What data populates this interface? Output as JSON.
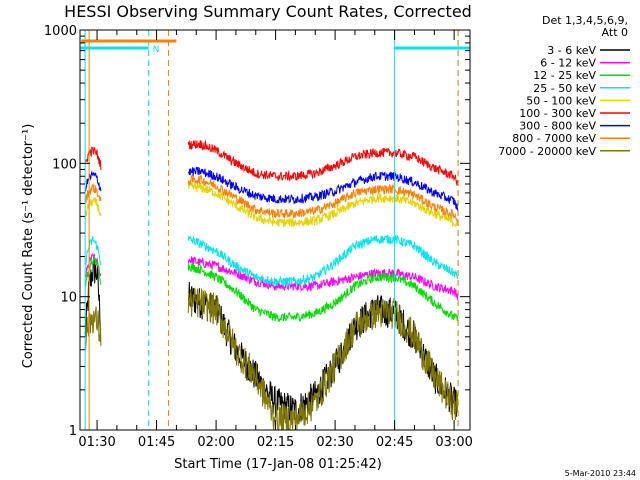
{
  "chart_data": {
    "type": "line",
    "title": "HESSI Observing Summary Count Rates, Corrected",
    "xlabel": "Start Time (17-Jan-08 01:25:42)",
    "ylabel": "Corrected Count Rate (s⁻¹ detector⁻¹)",
    "ylim": [
      1,
      1000
    ],
    "y_scale": "log",
    "y_ticks": [
      1,
      10,
      100,
      1000
    ],
    "y_tick_labels": [
      "1",
      "10",
      "100",
      "1000"
    ],
    "xlim": [
      "01:25:42",
      "03:04:00"
    ],
    "x_ticks": [
      "01:30",
      "01:45",
      "02:00",
      "02:15",
      "02:30",
      "02:45",
      "03:00"
    ],
    "grid": false,
    "legend_position": "right",
    "legend_header": [
      "Det 1,3,4,5,6,9,",
      "Att 0"
    ],
    "timestamp": "5-Mar-2010 23:44",
    "x_times": [
      "01:27",
      "01:28",
      "01:29",
      "01:30",
      "01:31",
      "01:53",
      "01:56",
      "02:00",
      "02:05",
      "02:10",
      "02:15",
      "02:20",
      "02:25",
      "02:30",
      "02:35",
      "02:40",
      "02:45",
      "02:50",
      "02:55",
      "03:00",
      "03:01"
    ],
    "series": [
      {
        "name": "3 - 6 keV",
        "color": "#000000",
        "values": [
          5,
          12,
          16,
          15,
          6,
          10,
          9,
          8,
          4,
          2.5,
          1.6,
          1.4,
          1.8,
          3,
          6,
          8,
          7.5,
          5,
          2.5,
          1.6,
          1.5
        ]
      },
      {
        "name": "6 - 12 keV",
        "color": "#ff00ff",
        "values": [
          14,
          18,
          20,
          18,
          14,
          19,
          18,
          17,
          15,
          13,
          12,
          12,
          12,
          13,
          14,
          15,
          15,
          14,
          12,
          11,
          10
        ]
      },
      {
        "name": "12 - 25 keV",
        "color": "#00dd00",
        "values": [
          12,
          16,
          19,
          18,
          13,
          17,
          16,
          14,
          11,
          8,
          7,
          7,
          7.5,
          9,
          12,
          14,
          14,
          12,
          9,
          7,
          6.8
        ]
      },
      {
        "name": "25 - 50 keV",
        "color": "#00e5ee",
        "values": [
          18,
          24,
          27,
          24,
          18,
          27,
          25,
          22,
          17,
          14,
          13,
          13,
          14,
          18,
          24,
          27,
          27,
          24,
          18,
          15,
          14
        ]
      },
      {
        "name": "50 - 100 keV",
        "color": "#e8d200",
        "values": [
          40,
          49,
          52,
          50,
          40,
          66,
          66,
          60,
          48,
          39,
          36,
          36,
          37,
          42,
          50,
          55,
          55,
          50,
          42,
          36,
          35
        ]
      },
      {
        "name": "100 - 300 keV",
        "color": "#ff0000",
        "values": [
          100,
          120,
          125,
          118,
          95,
          138,
          140,
          125,
          100,
          84,
          80,
          80,
          84,
          96,
          112,
          120,
          120,
          112,
          92,
          80,
          68
        ]
      },
      {
        "name": "300 - 800 keV",
        "color": "#0000ff",
        "values": [
          65,
          78,
          82,
          78,
          62,
          86,
          87,
          80,
          66,
          57,
          54,
          54,
          56,
          62,
          72,
          80,
          80,
          72,
          60,
          52,
          45
        ]
      },
      {
        "name": "800 - 7000 keV",
        "color": "#ff8000",
        "values": [
          52,
          62,
          66,
          62,
          50,
          74,
          76,
          68,
          55,
          45,
          42,
          42,
          44,
          50,
          60,
          64,
          64,
          58,
          47,
          41,
          37
        ]
      },
      {
        "name": "7000 - 20000 keV",
        "color": "#807800",
        "values": [
          5,
          6.5,
          7,
          6.5,
          5,
          9,
          9,
          8,
          4,
          2.5,
          1.2,
          1.2,
          1.6,
          3,
          6,
          7.5,
          7.5,
          5,
          2.5,
          1.5,
          1.5
        ]
      }
    ],
    "segments": [
      {
        "label": "N",
        "color": "#00e5ee",
        "start": "01:23",
        "end": "01:43"
      },
      {
        "label": "",
        "color": "#00e5ee",
        "start": "02:45",
        "end": "03:04"
      },
      {
        "label": "",
        "color": "#ff8000",
        "start": "01:26",
        "end": "01:50"
      }
    ],
    "vlines": [
      {
        "time": "01:27",
        "color": "#00e5ee",
        "style": "solid"
      },
      {
        "time": "01:28",
        "color": "#ff8000",
        "style": "solid"
      },
      {
        "time": "01:43",
        "color": "#00e5ee",
        "style": "dashed"
      },
      {
        "time": "01:48",
        "color": "#ff8000",
        "style": "dashed"
      },
      {
        "time": "02:45",
        "color": "#00e5ee",
        "style": "solid"
      },
      {
        "time": "03:01",
        "color": "#00e5ee",
        "style": "dashed"
      },
      {
        "time": "03:01",
        "color": "#ff8000",
        "style": "dashed"
      }
    ]
  }
}
